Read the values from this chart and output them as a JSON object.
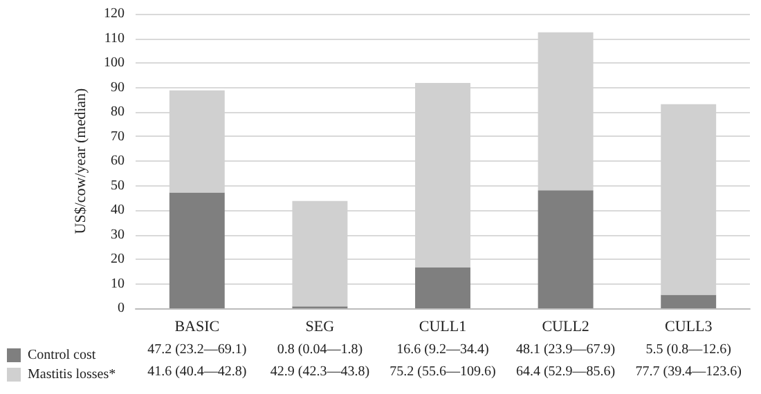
{
  "chart_data": {
    "type": "bar",
    "stacked": true,
    "ylabel": "US$/cow/year (median)",
    "categories": [
      "BASIC",
      "SEG",
      "CULL1",
      "CULL2",
      "CULL3"
    ],
    "series": [
      {
        "name": "Control cost",
        "color": "#7f7f7f",
        "values": [
          47.2,
          0.8,
          16.6,
          48.1,
          5.5
        ],
        "value_labels": [
          "47.2 (23.2—69.1)",
          "0.8 (0.04—1.8)",
          "16.6 (9.2—34.4)",
          "48.1 (23.9—67.9)",
          "5.5 (0.8—12.6)"
        ]
      },
      {
        "name": "Mastitis losses*",
        "color": "#d0d0d0",
        "values": [
          41.6,
          42.9,
          75.2,
          64.4,
          77.7
        ],
        "value_labels": [
          "41.6 (40.4—42.8)",
          "42.9 (42.3—43.8)",
          "75.2 (55.6—109.6)",
          "64.4 (52.9—85.6)",
          "77.7 (39.4—123.6)"
        ]
      }
    ],
    "ylim": [
      0,
      120
    ],
    "yticks": [
      0,
      10,
      20,
      30,
      40,
      50,
      60,
      70,
      80,
      90,
      100,
      110,
      120
    ],
    "grid": "y",
    "legend": "bottom left"
  }
}
